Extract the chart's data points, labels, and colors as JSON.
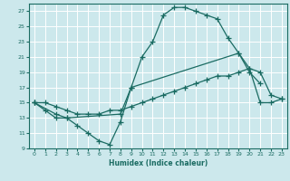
{
  "xlabel": "Humidex (Indice chaleur)",
  "background_color": "#cce8ec",
  "line_color": "#1a6b62",
  "grid_color": "#ffffff",
  "xlim": [
    -0.5,
    23.5
  ],
  "ylim": [
    9,
    28
  ],
  "xticks": [
    0,
    1,
    2,
    3,
    4,
    5,
    6,
    7,
    8,
    9,
    10,
    11,
    12,
    13,
    14,
    15,
    16,
    17,
    18,
    19,
    20,
    21,
    22,
    23
  ],
  "yticks": [
    9,
    11,
    13,
    15,
    17,
    19,
    21,
    23,
    25,
    27
  ],
  "line1_x": [
    0,
    1,
    2,
    3,
    4,
    5,
    6,
    7,
    8,
    9,
    10,
    11,
    12,
    13,
    14,
    15,
    16,
    17,
    18,
    19,
    20,
    21
  ],
  "line1_y": [
    15,
    14,
    13,
    13,
    12,
    11,
    10,
    9.5,
    12.5,
    17,
    21,
    23,
    26.5,
    27.5,
    27.5,
    27,
    26.5,
    26,
    23.5,
    21.5,
    19,
    17.5
  ],
  "line2_x": [
    0,
    1,
    2,
    3,
    4,
    5,
    6,
    7,
    8,
    9,
    10,
    11,
    12,
    13,
    14,
    15,
    16,
    17,
    18,
    19,
    20,
    21,
    22,
    23
  ],
  "line2_y": [
    15,
    15,
    14.5,
    14,
    13.5,
    13.5,
    13.5,
    14,
    14,
    14.5,
    15,
    15.5,
    16,
    16.5,
    17,
    17.5,
    18,
    18.5,
    18.5,
    19,
    19.5,
    15,
    15,
    15.5
  ],
  "line3_x": [
    0,
    2,
    3,
    8,
    9,
    19,
    20,
    21,
    22,
    23
  ],
  "line3_y": [
    15,
    13.5,
    13,
    13.5,
    17,
    21.5,
    19.5,
    19,
    16,
    15.5
  ]
}
